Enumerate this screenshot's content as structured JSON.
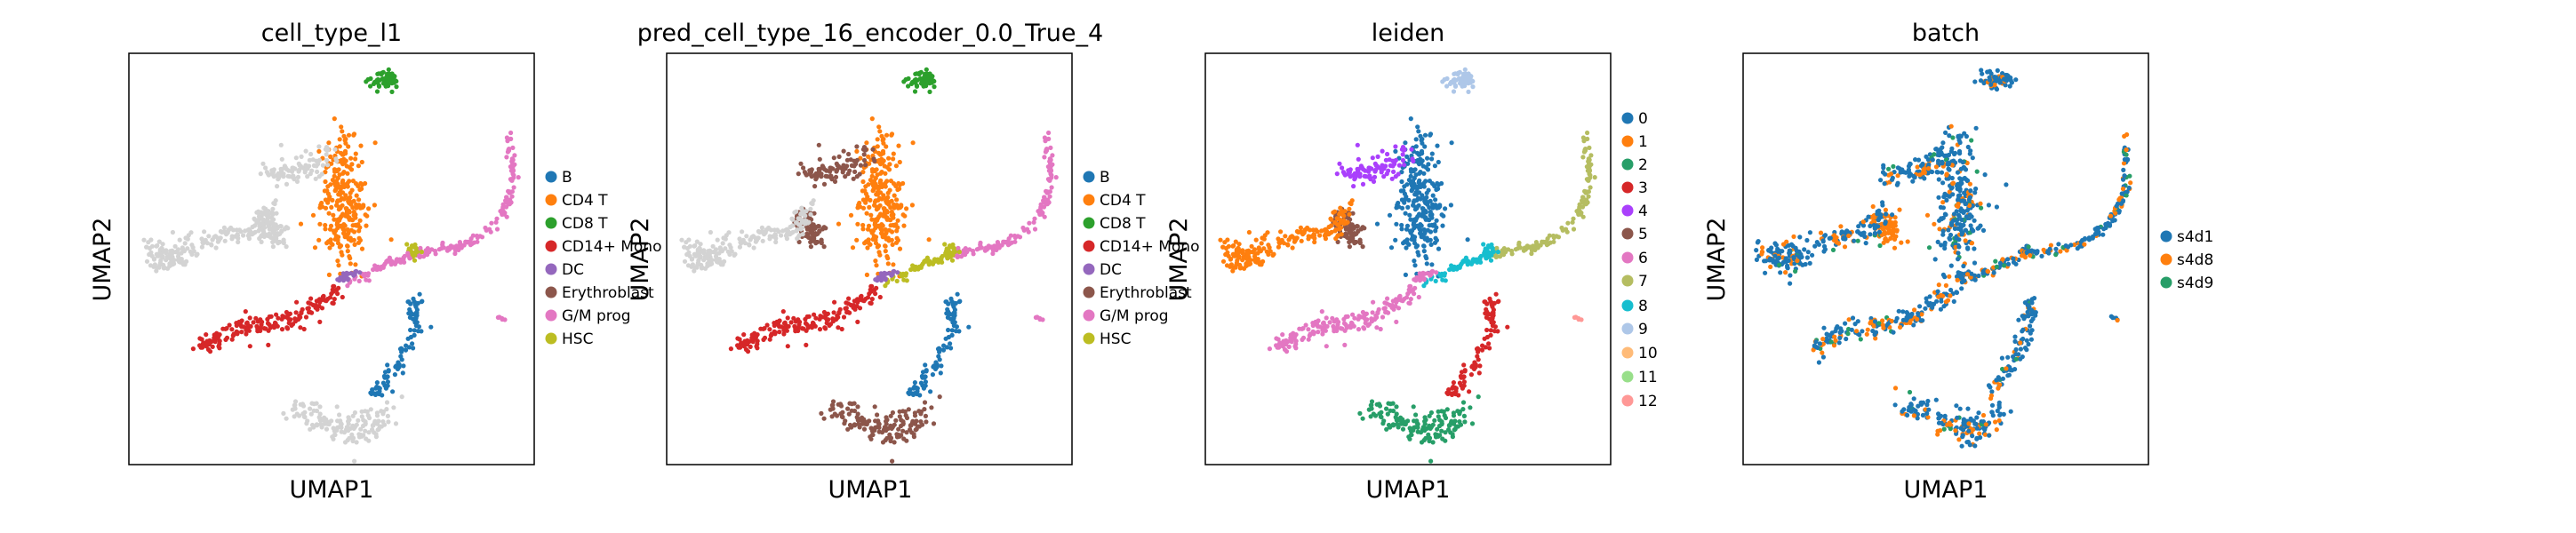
{
  "figure": {
    "panels": [
      {
        "title": "cell_type_l1",
        "xlabel": "UMAP1",
        "ylabel": "UMAP2",
        "legend": [
          {
            "label": "B",
            "color": "#1f77b4"
          },
          {
            "label": "CD4 T",
            "color": "#ff7f0e"
          },
          {
            "label": "CD8 T",
            "color": "#2ca02c"
          },
          {
            "label": "CD14+ Mono",
            "color": "#d62728"
          },
          {
            "label": "DC",
            "color": "#9467bd"
          },
          {
            "label": "Erythroblast",
            "color": "#8c564b"
          },
          {
            "label": "G/M prog",
            "color": "#e377c2"
          },
          {
            "label": "HSC",
            "color": "#bcbd22"
          }
        ]
      },
      {
        "title": "pred_cell_type_16_encoder_0.0_True_4",
        "xlabel": "UMAP1",
        "ylabel": "UMAP2",
        "legend": [
          {
            "label": "B",
            "color": "#1f77b4"
          },
          {
            "label": "CD4 T",
            "color": "#ff7f0e"
          },
          {
            "label": "CD8 T",
            "color": "#2ca02c"
          },
          {
            "label": "CD14+ Mono",
            "color": "#d62728"
          },
          {
            "label": "DC",
            "color": "#9467bd"
          },
          {
            "label": "Erythroblast",
            "color": "#8c564b"
          },
          {
            "label": "G/M prog",
            "color": "#e377c2"
          },
          {
            "label": "HSC",
            "color": "#bcbd22"
          }
        ]
      },
      {
        "title": "leiden",
        "xlabel": "UMAP1",
        "ylabel": "UMAP2",
        "legend": [
          {
            "label": "0",
            "color": "#1f77b4"
          },
          {
            "label": "1",
            "color": "#ff7f0e"
          },
          {
            "label": "2",
            "color": "#279e68"
          },
          {
            "label": "3",
            "color": "#d62728"
          },
          {
            "label": "4",
            "color": "#aa40fc"
          },
          {
            "label": "5",
            "color": "#8c564b"
          },
          {
            "label": "6",
            "color": "#e377c2"
          },
          {
            "label": "7",
            "color": "#b5bd61"
          },
          {
            "label": "8",
            "color": "#17becf"
          },
          {
            "label": "9",
            "color": "#aec7e8"
          },
          {
            "label": "10",
            "color": "#ffbb78"
          },
          {
            "label": "11",
            "color": "#98df8a"
          },
          {
            "label": "12",
            "color": "#ff9896"
          }
        ]
      },
      {
        "title": "batch",
        "xlabel": "UMAP1",
        "ylabel": "UMAP2",
        "legend": [
          {
            "label": "s4d1",
            "color": "#1f77b4"
          },
          {
            "label": "s4d8",
            "color": "#ff7f0e"
          },
          {
            "label": "s4d9",
            "color": "#279e68"
          }
        ]
      }
    ]
  },
  "chart_data": [
    {
      "type": "scatter",
      "title": "cell_type_l1",
      "xlabel": "UMAP1",
      "ylabel": "UMAP2",
      "grid": false,
      "legend_placement": "right",
      "categories": [
        "B",
        "CD4 T",
        "CD8 T",
        "CD14+ Mono",
        "DC",
        "Erythroblast",
        "G/M prog",
        "HSC"
      ]
    },
    {
      "type": "scatter",
      "title": "pred_cell_type_16_encoder_0.0_True_4",
      "xlabel": "UMAP1",
      "ylabel": "UMAP2",
      "grid": false,
      "legend_placement": "right",
      "categories": [
        "B",
        "CD4 T",
        "CD8 T",
        "CD14+ Mono",
        "DC",
        "Erythroblast",
        "G/M prog",
        "HSC"
      ]
    },
    {
      "type": "scatter",
      "title": "leiden",
      "xlabel": "UMAP1",
      "ylabel": "UMAP2",
      "grid": false,
      "legend_placement": "right",
      "categories": [
        "0",
        "1",
        "2",
        "3",
        "4",
        "5",
        "6",
        "7",
        "8",
        "9",
        "10",
        "11",
        "12"
      ]
    },
    {
      "type": "scatter",
      "title": "batch",
      "xlabel": "UMAP1",
      "ylabel": "UMAP2",
      "grid": false,
      "legend_placement": "right",
      "categories": [
        "s4d1",
        "s4d8",
        "s4d9"
      ]
    }
  ]
}
